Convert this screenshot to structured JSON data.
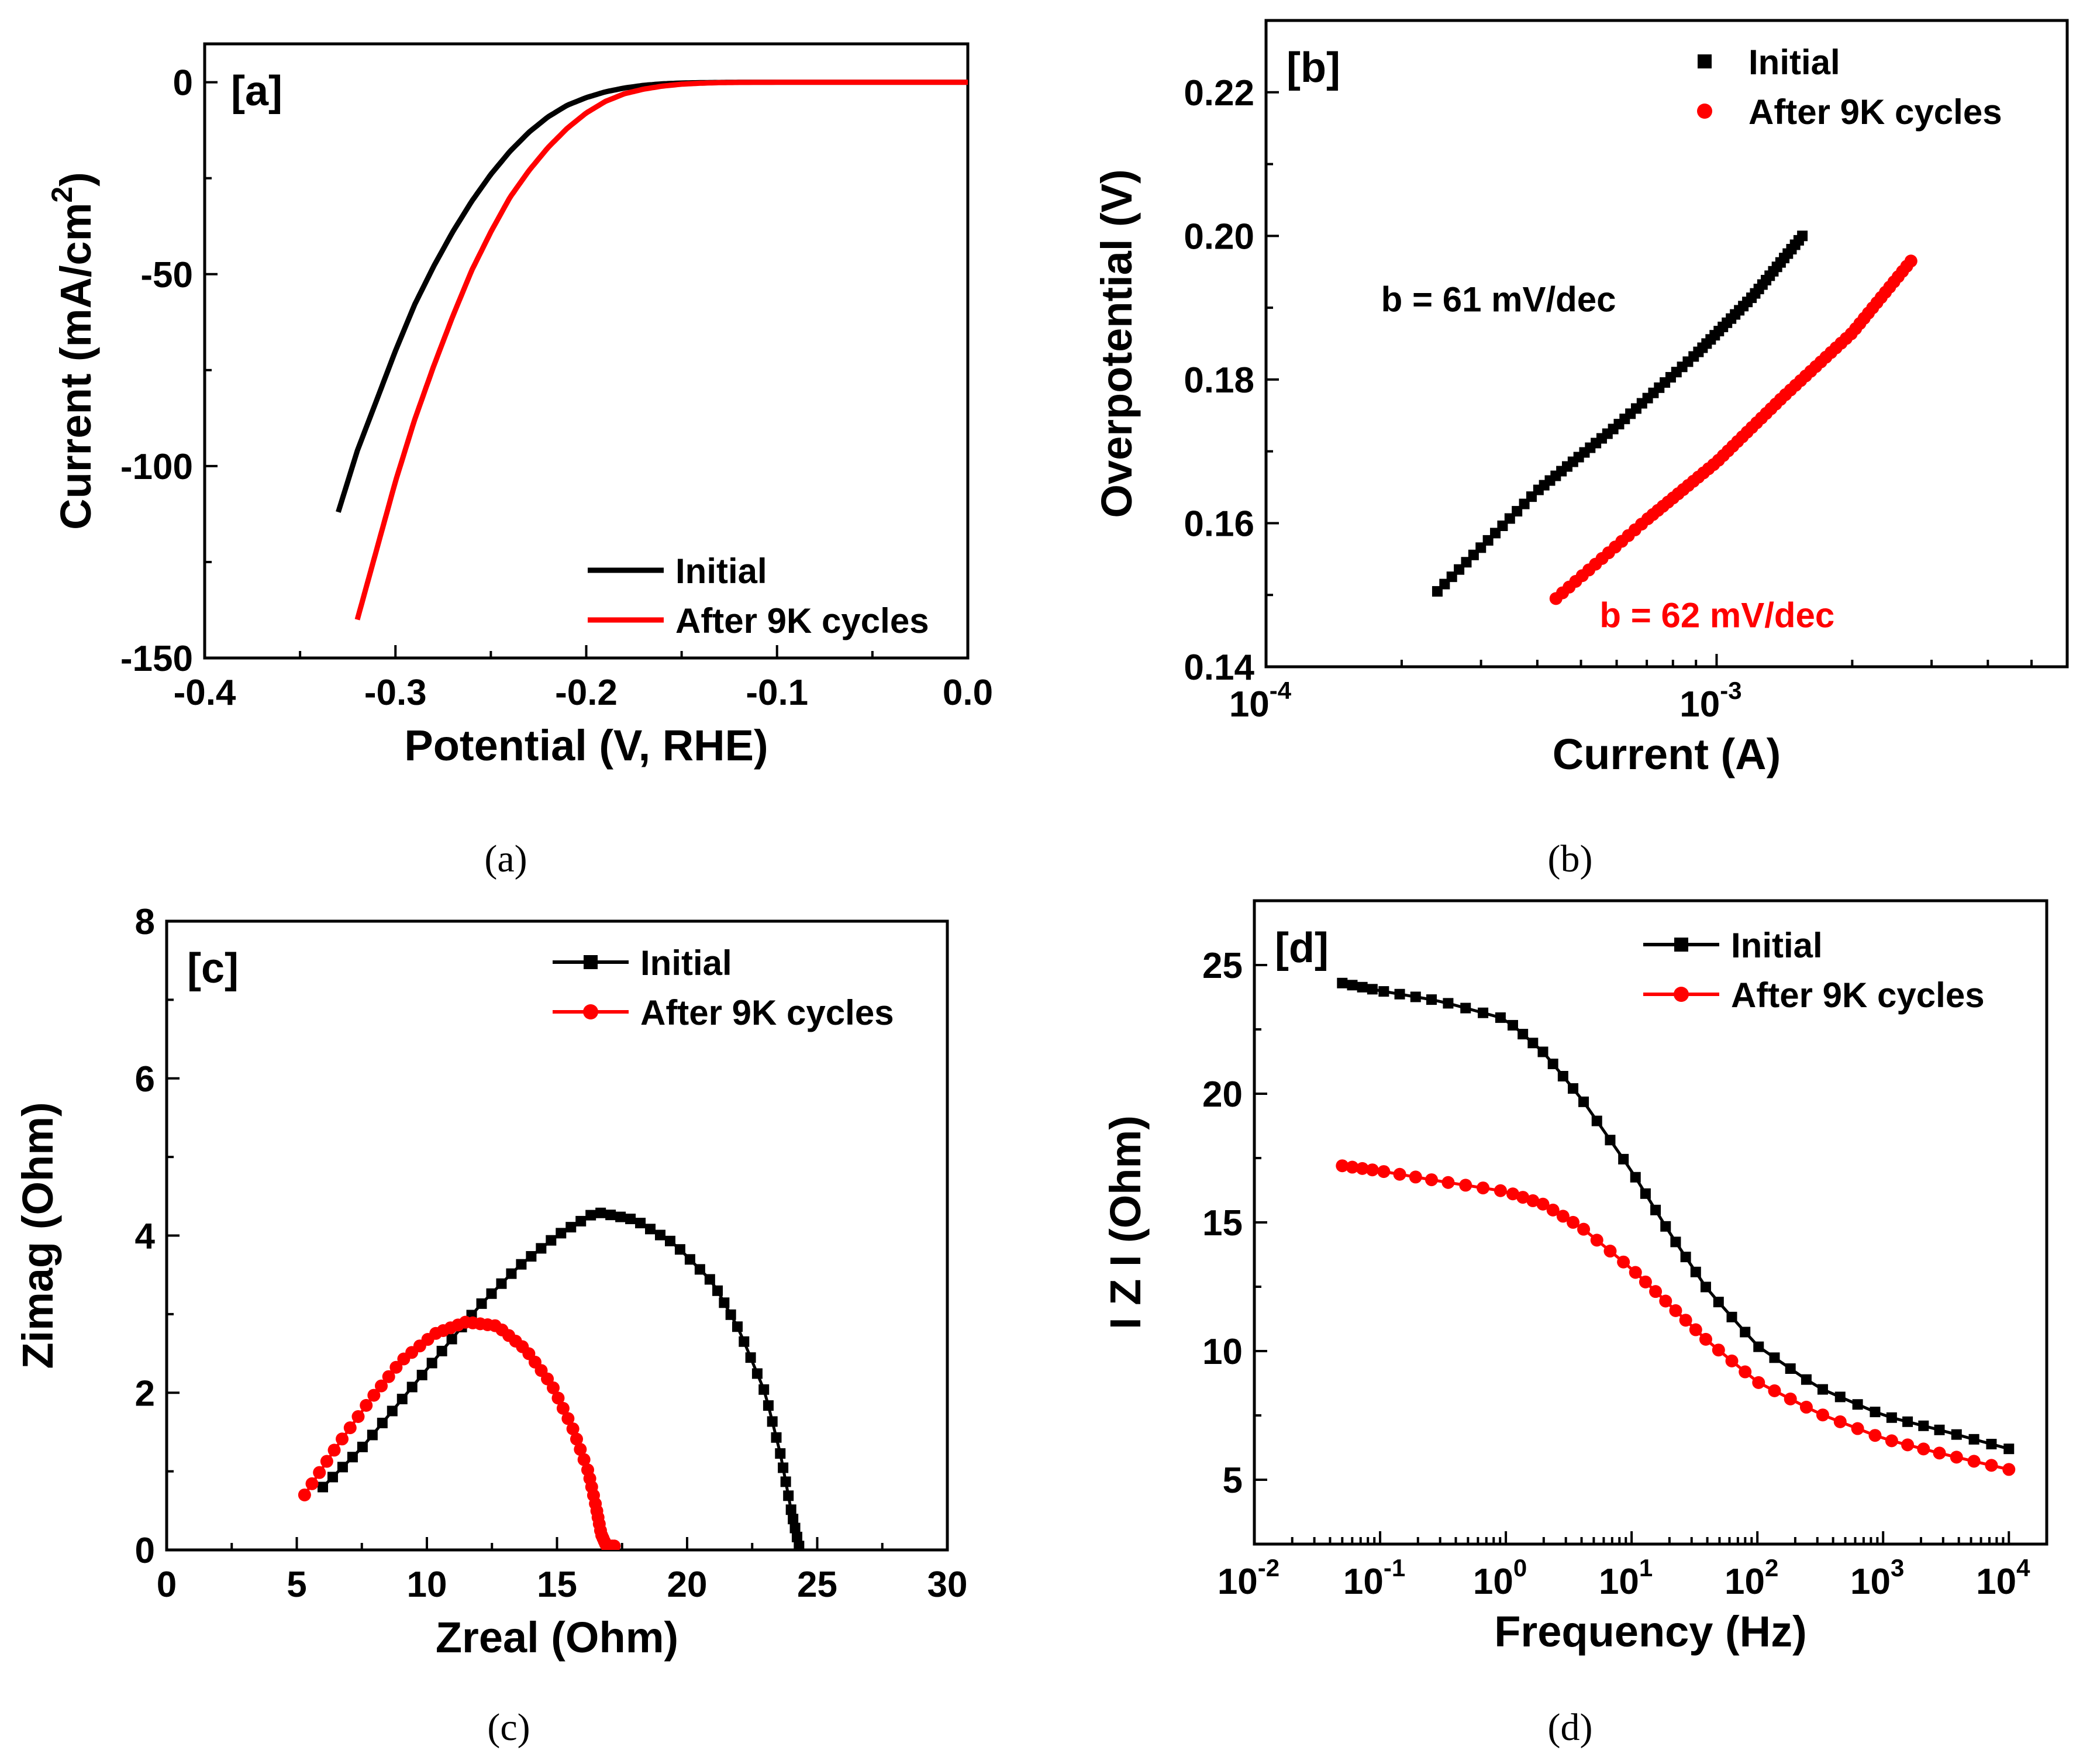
{
  "colors": {
    "initial": "#000000",
    "after": "#ff0000"
  },
  "chart_data": [
    {
      "id": "a",
      "type": "line",
      "panel_label": "[a]",
      "caption": "(a)",
      "xlabel": "Potential (V, RHE)",
      "ylabel": "Current (mA/cm",
      "ylabel_sup": "2",
      "ylabel_end": ")",
      "xlim": [
        -0.4,
        0.0
      ],
      "ylim": [
        -150,
        10
      ],
      "xscale": "linear",
      "yscale": "linear",
      "xticks": [
        -0.4,
        -0.3,
        -0.2,
        -0.1,
        0.0
      ],
      "xtick_labels": [
        "-0.4",
        "-0.3",
        "-0.2",
        "-0.1",
        "0.0"
      ],
      "yticks": [
        -150,
        -100,
        -50,
        0
      ],
      "ytick_labels": [
        "-150",
        "-100",
        "-50",
        "0"
      ],
      "legend": [
        "Initial",
        "After 9K cycles"
      ],
      "legend_position": "bottom-right",
      "marker": "none",
      "series": [
        {
          "name": "Initial",
          "color_key": "initial",
          "x": [
            -0.33,
            -0.32,
            -0.31,
            -0.3,
            -0.29,
            -0.28,
            -0.27,
            -0.26,
            -0.25,
            -0.24,
            -0.23,
            -0.22,
            -0.21,
            -0.2,
            -0.19,
            -0.18,
            -0.17,
            -0.16,
            -0.15,
            -0.14,
            -0.13,
            -0.12,
            -0.1,
            -0.08,
            -0.05,
            0.0
          ],
          "y": [
            -112,
            -96,
            -83,
            -70,
            -58,
            -48,
            -39,
            -31,
            -24,
            -18,
            -13,
            -9,
            -6,
            -4,
            -2.5,
            -1.5,
            -0.8,
            -0.4,
            -0.2,
            -0.1,
            -0.05,
            0,
            0,
            0,
            0,
            0
          ]
        },
        {
          "name": "After 9K cycles",
          "color_key": "after",
          "x": [
            -0.32,
            -0.31,
            -0.3,
            -0.29,
            -0.28,
            -0.27,
            -0.26,
            -0.25,
            -0.24,
            -0.23,
            -0.22,
            -0.21,
            -0.2,
            -0.19,
            -0.18,
            -0.17,
            -0.16,
            -0.15,
            -0.14,
            -0.13,
            -0.12,
            -0.1,
            -0.08,
            -0.05,
            0.0
          ],
          "y": [
            -140,
            -122,
            -104,
            -88,
            -74,
            -61,
            -49,
            -39,
            -30,
            -23,
            -17,
            -12,
            -8,
            -5,
            -3,
            -1.8,
            -1,
            -0.5,
            -0.25,
            -0.1,
            -0.05,
            0,
            0,
            0,
            0
          ]
        }
      ]
    },
    {
      "id": "b",
      "type": "scatter",
      "panel_label": "[b]",
      "caption": "(b)",
      "xlabel": "Current (A)",
      "ylabel": "Overpotential (V)",
      "xlim": [
        0.0001,
        0.006
      ],
      "ylim": [
        0.14,
        0.23
      ],
      "xscale": "log",
      "yscale": "linear",
      "xtick_labels": [
        {
          "base": "10",
          "exp": "-4",
          "value": 0.0001
        },
        {
          "base": "10",
          "exp": "-3",
          "value": 0.001
        }
      ],
      "yticks": [
        0.14,
        0.16,
        0.18,
        0.2,
        0.22
      ],
      "ytick_labels": [
        "0.14",
        "0.16",
        "0.18",
        "0.20",
        "0.22"
      ],
      "legend": [
        "Initial",
        "After 9K cycles"
      ],
      "legend_position": "top-right",
      "annotations": [
        {
          "text": "b = 61 mV/dec",
          "color_key": "initial",
          "x": 0.00018,
          "y": 0.1895
        },
        {
          "text": "b = 62 mV/dec",
          "color_key": "after",
          "x": 0.00055,
          "y": 0.1455
        }
      ],
      "series": [
        {
          "name": "Initial",
          "color_key": "initial",
          "marker": "square",
          "n_points": 70,
          "x": [
            0.00024,
            0.0004,
            0.0006,
            0.0009,
            0.0012,
            0.00155
          ],
          "y": [
            0.1505,
            0.1645,
            0.1735,
            0.1835,
            0.1915,
            0.2
          ]
        },
        {
          "name": "After 9K cycles",
          "color_key": "after",
          "marker": "circle",
          "n_points": 70,
          "x": [
            0.00044,
            0.0007,
            0.001,
            0.0014,
            0.002,
            0.0027
          ],
          "y": [
            0.1495,
            0.1605,
            0.1685,
            0.1775,
            0.1865,
            0.1965
          ]
        }
      ]
    },
    {
      "id": "c",
      "type": "scatter",
      "panel_label": "[c]",
      "caption": "(c)",
      "xlabel": "Zreal (Ohm)",
      "ylabel": "Zimag (Ohm)",
      "xlim": [
        0,
        30
      ],
      "ylim": [
        0,
        8
      ],
      "xscale": "linear",
      "yscale": "linear",
      "xticks": [
        0,
        5,
        10,
        15,
        20,
        25,
        30
      ],
      "xtick_labels": [
        "0",
        "5",
        "10",
        "15",
        "20",
        "25",
        "30"
      ],
      "yticks": [
        0,
        2,
        4,
        6,
        8
      ],
      "ytick_labels": [
        "0",
        "2",
        "4",
        "6",
        "8"
      ],
      "legend": [
        "Initial",
        "After 9K cycles"
      ],
      "legend_position": "top-right",
      "series": [
        {
          "name": "Initial",
          "color_key": "initial",
          "marker": "square",
          "n_points": 60,
          "x": [
            6.0,
            7.5,
            9.0,
            10.5,
            12.0,
            13.5,
            15.0,
            16.5,
            18.0,
            19.5,
            21.0,
            22.0,
            23.0,
            23.6,
            24.0,
            24.3
          ],
          "y": [
            0.8,
            1.3,
            1.9,
            2.5,
            3.1,
            3.6,
            4.0,
            4.3,
            4.2,
            3.9,
            3.4,
            2.8,
            2.0,
            1.2,
            0.5,
            0.05
          ]
        },
        {
          "name": "After 9K cycles",
          "color_key": "after",
          "marker": "circle",
          "n_points": 60,
          "x": [
            5.3,
            6.5,
            7.8,
            9.0,
            10.3,
            11.5,
            12.7,
            13.8,
            14.8,
            15.6,
            16.2,
            16.5,
            16.7,
            16.9,
            17.2
          ],
          "y": [
            0.7,
            1.3,
            1.9,
            2.4,
            2.75,
            2.9,
            2.85,
            2.55,
            2.1,
            1.55,
            1.0,
            0.55,
            0.2,
            0.05,
            0.05
          ]
        }
      ]
    },
    {
      "id": "d",
      "type": "line",
      "panel_label": "[d]",
      "caption": "(d)",
      "xlabel": "Frequency (Hz)",
      "ylabel": "I Z I (Ohm)",
      "xlim": [
        0.01,
        20000
      ],
      "ylim": [
        2.5,
        27.5
      ],
      "xscale": "log",
      "yscale": "linear",
      "xtick_labels": [
        {
          "base": "10",
          "exp": "-2",
          "value": 0.01
        },
        {
          "base": "10",
          "exp": "-1",
          "value": 0.1
        },
        {
          "base": "10",
          "exp": "0",
          "value": 1
        },
        {
          "base": "10",
          "exp": "1",
          "value": 10
        },
        {
          "base": "10",
          "exp": "2",
          "value": 100
        },
        {
          "base": "10",
          "exp": "3",
          "value": 1000
        },
        {
          "base": "10",
          "exp": "4",
          "value": 10000
        }
      ],
      "yticks": [
        5,
        10,
        15,
        20,
        25
      ],
      "ytick_labels": [
        "5",
        "10",
        "15",
        "20",
        "25"
      ],
      "legend": [
        "Initial",
        "After 9K cycles"
      ],
      "legend_position": "top-right",
      "series": [
        {
          "name": "Initial",
          "color_key": "initial",
          "marker": "square",
          "n_points": 50,
          "x": [
            0.05,
            0.1,
            0.3,
            1,
            2,
            4,
            10,
            20,
            40,
            100,
            300,
            1000,
            3000,
            10000
          ],
          "y": [
            24.3,
            24.0,
            23.6,
            22.9,
            21.6,
            19.8,
            17.0,
            14.6,
            12.4,
            10.2,
            8.6,
            7.5,
            6.9,
            6.2
          ]
        },
        {
          "name": "After 9K cycles",
          "color_key": "after",
          "marker": "circle",
          "n_points": 50,
          "x": [
            0.05,
            0.1,
            0.3,
            1,
            2,
            4,
            10,
            20,
            40,
            100,
            300,
            1000,
            3000,
            10000
          ],
          "y": [
            17.2,
            17.0,
            16.6,
            16.2,
            15.7,
            14.8,
            13.2,
            11.8,
            10.4,
            8.8,
            7.6,
            6.6,
            6.0,
            5.4
          ]
        }
      ]
    }
  ]
}
